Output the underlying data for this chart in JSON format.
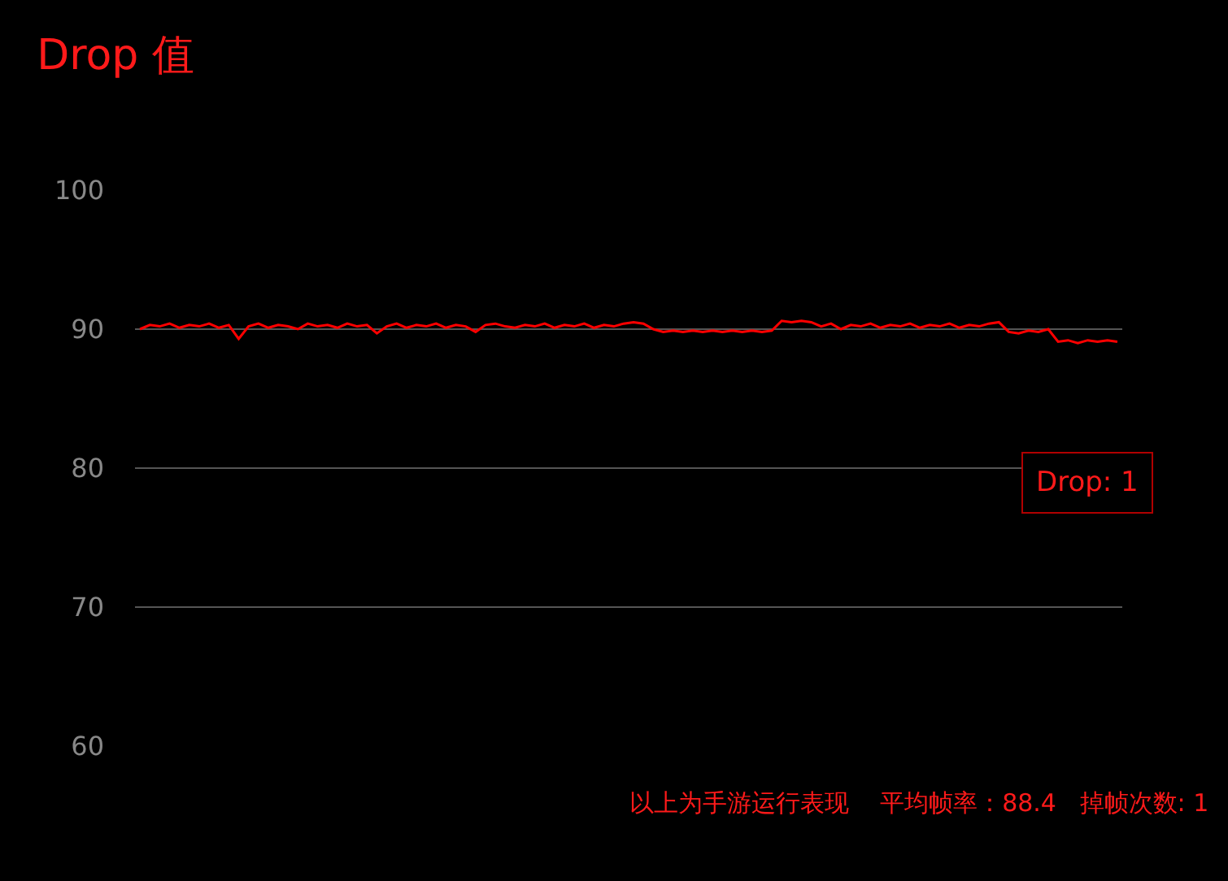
{
  "chart_data": {
    "type": "line",
    "title": "Drop 值",
    "categories": [
      null,
      null,
      null,
      null,
      null,
      null,
      null,
      null,
      null,
      null,
      null,
      null,
      null,
      null,
      null,
      null,
      null,
      null,
      null,
      null,
      null,
      null,
      null,
      null,
      null,
      null,
      null,
      null,
      null,
      null,
      null,
      null,
      null,
      null,
      null,
      null,
      null,
      null,
      null,
      null,
      null,
      null,
      null,
      null,
      null,
      null,
      null,
      null,
      null,
      null,
      null,
      null,
      null,
      null,
      null,
      null,
      null,
      null,
      null,
      null,
      null,
      null,
      null,
      null,
      null,
      null,
      null,
      null,
      null,
      null,
      null,
      null,
      null,
      null,
      null,
      null,
      null,
      null,
      null,
      null,
      null,
      null,
      null,
      null,
      null,
      null,
      null,
      null,
      null,
      null,
      null,
      null,
      null,
      null,
      null,
      null,
      null,
      null,
      null,
      null
    ],
    "series": [
      {
        "color": "#ff0000",
        "values": [
          90.0,
          90.3,
          90.2,
          90.4,
          90.1,
          90.3,
          90.2,
          90.4,
          90.1,
          90.3,
          89.3,
          90.2,
          90.4,
          90.1,
          90.3,
          90.2,
          90.0,
          90.4,
          90.2,
          90.3,
          90.1,
          90.4,
          90.2,
          90.3,
          89.7,
          90.2,
          90.4,
          90.1,
          90.3,
          90.2,
          90.4,
          90.1,
          90.3,
          90.2,
          89.8,
          90.3,
          90.4,
          90.2,
          90.1,
          90.3,
          90.2,
          90.4,
          90.1,
          90.3,
          90.2,
          90.4,
          90.1,
          90.3,
          90.2,
          90.4,
          90.5,
          90.4,
          90.0,
          89.8,
          89.9,
          89.8,
          89.9,
          89.8,
          89.9,
          89.8,
          89.9,
          89.8,
          89.9,
          89.8,
          89.9,
          90.6,
          90.5,
          90.6,
          90.5,
          90.2,
          90.4,
          90.0,
          90.3,
          90.2,
          90.4,
          90.1,
          90.3,
          90.2,
          90.4,
          90.1,
          90.3,
          90.2,
          90.4,
          90.1,
          90.3,
          90.2,
          90.4,
          90.5,
          89.8,
          89.7,
          89.9,
          89.8,
          90.0,
          89.1,
          89.2,
          89.0,
          89.2,
          89.1,
          89.2,
          89.1
        ]
      }
    ],
    "ylim": [
      60,
      100
    ],
    "yticks": [
      60,
      70,
      80,
      90,
      100
    ],
    "grid": "y",
    "tick_labels": "y",
    "marker": "none",
    "line_style": "solid",
    "annotations": [
      "Drop: 1",
      "以上为手游运行表现    平均帧率：88.4   掉帧次数: 1"
    ]
  }
}
